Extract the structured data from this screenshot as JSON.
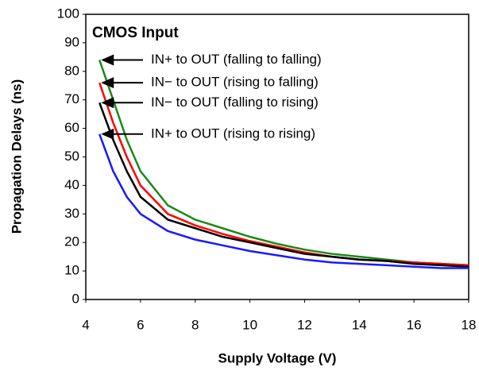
{
  "chart_data": {
    "type": "line",
    "annotation": "CMOS Input",
    "x_label": "Supply Voltage (V)",
    "y_label": "Propagation Delays (ns)",
    "x": [
      4.5,
      5,
      5.5,
      6,
      7,
      8,
      9,
      10,
      11,
      12,
      13,
      14,
      15,
      16,
      17,
      18
    ],
    "series": [
      {
        "name": "IN+ to OUT (falling to falling)",
        "color": "#1a8a1a",
        "values": [
          84,
          70,
          56,
          45,
          33,
          28,
          25,
          22,
          19.5,
          17.5,
          16,
          15,
          14,
          13,
          12.5,
          12
        ]
      },
      {
        "name": "IN− to OUT (rising to falling)",
        "color": "#ff0000",
        "values": [
          76,
          62,
          50,
          40,
          30,
          26,
          23,
          20.5,
          18.5,
          16.5,
          15,
          14,
          13.5,
          13,
          12.5,
          12
        ]
      },
      {
        "name": "IN− to OUT (falling to rising)",
        "color": "#000000",
        "values": [
          69,
          56,
          45,
          36,
          28,
          25,
          22,
          20,
          18,
          16,
          15,
          14,
          13.5,
          12.5,
          12,
          11.5
        ]
      },
      {
        "name": "IN+ to OUT (rising to rising)",
        "color": "#1a1aff",
        "values": [
          58,
          45,
          36,
          30,
          24,
          21,
          19,
          17,
          15.5,
          14,
          13,
          12.5,
          12,
          11.5,
          11,
          11
        ]
      }
    ],
    "xlim": [
      4,
      18
    ],
    "xticks": [
      4,
      6,
      8,
      10,
      12,
      14,
      16,
      18
    ],
    "ylim": [
      0,
      100
    ],
    "yticks": [
      0,
      10,
      20,
      30,
      40,
      50,
      60,
      70,
      80,
      90,
      100
    ],
    "grid": false
  }
}
